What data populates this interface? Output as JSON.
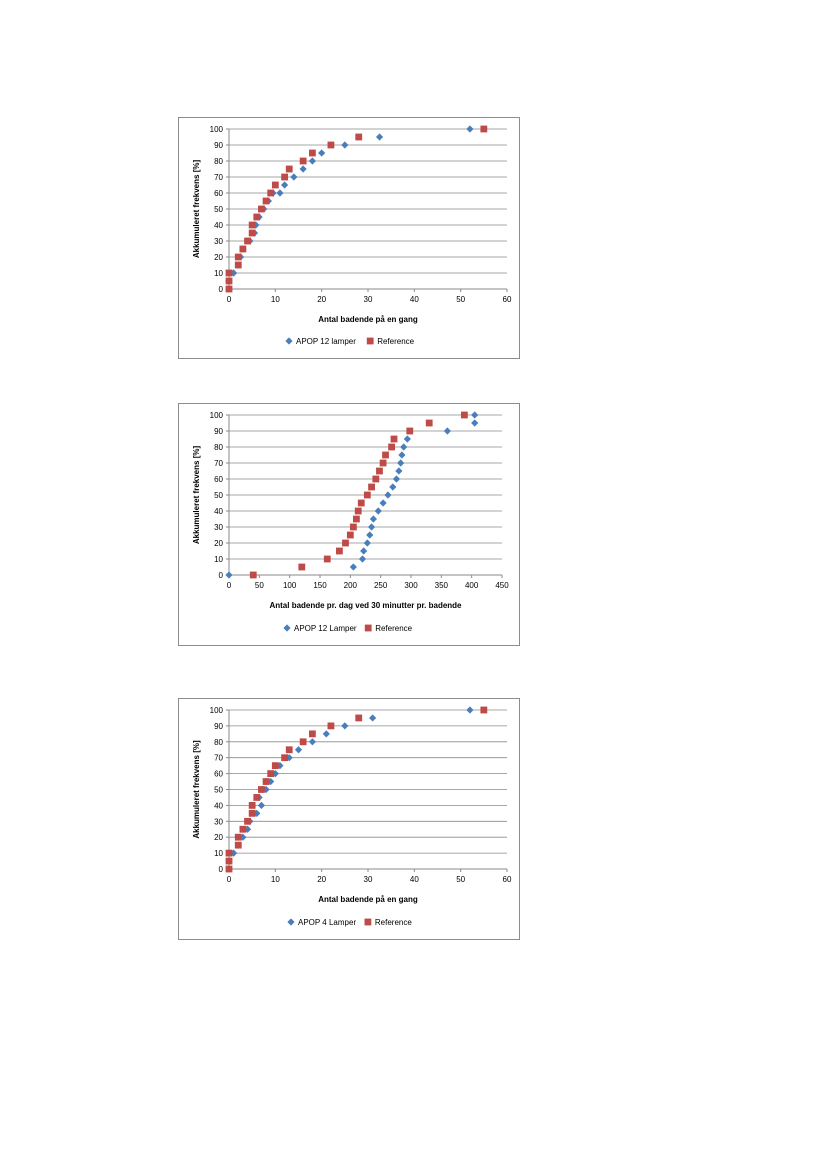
{
  "chart_data": [
    {
      "type": "scatter",
      "title": "",
      "xlabel": "Antal badende på en gang",
      "ylabel": "Akkumuleret frekvens [%]",
      "xlim": [
        0,
        60
      ],
      "ylim": [
        0,
        100
      ],
      "xticks": [
        0,
        10,
        20,
        30,
        40,
        50,
        60
      ],
      "yticks": [
        0,
        10,
        20,
        30,
        40,
        50,
        60,
        70,
        80,
        90,
        100
      ],
      "grid": "horizontal",
      "legend": "bottom",
      "series": [
        {
          "name": "APOP 12 lamper",
          "marker": "diamond",
          "color": "#4a7ebb",
          "points": [
            [
              0,
              0
            ],
            [
              0,
              5
            ],
            [
              1,
              10
            ],
            [
              2,
              15
            ],
            [
              2.5,
              20
            ],
            [
              3,
              25
            ],
            [
              4.5,
              30
            ],
            [
              5.5,
              35
            ],
            [
              5.8,
              40
            ],
            [
              6.5,
              45
            ],
            [
              7.5,
              50
            ],
            [
              8.5,
              55
            ],
            [
              9.5,
              60
            ],
            [
              12,
              65
            ],
            [
              11,
              60
            ],
            [
              14,
              70
            ],
            [
              16,
              75
            ],
            [
              18,
              80
            ],
            [
              20,
              85
            ],
            [
              25,
              90
            ],
            [
              32.5,
              95
            ],
            [
              52,
              100
            ]
          ]
        },
        {
          "name": "Reference",
          "marker": "square",
          "color": "#be4b48",
          "points": [
            [
              0,
              0
            ],
            [
              0,
              5
            ],
            [
              0,
              10
            ],
            [
              2,
              15
            ],
            [
              2,
              20
            ],
            [
              3,
              25
            ],
            [
              4,
              30
            ],
            [
              5,
              35
            ],
            [
              5,
              40
            ],
            [
              6,
              45
            ],
            [
              7,
              50
            ],
            [
              8,
              55
            ],
            [
              9,
              60
            ],
            [
              10,
              65
            ],
            [
              12,
              70
            ],
            [
              13,
              75
            ],
            [
              16,
              80
            ],
            [
              18,
              85
            ],
            [
              22,
              90
            ],
            [
              28,
              95
            ],
            [
              55,
              100
            ]
          ]
        }
      ]
    },
    {
      "type": "scatter",
      "title": "",
      "xlabel": "Antal badende pr. dag ved 30 minutter pr. badende",
      "ylabel": "Akkumuleret frekvens [%]",
      "xlim": [
        0,
        450
      ],
      "ylim": [
        0,
        100
      ],
      "xticks": [
        0,
        50,
        100,
        150,
        200,
        250,
        300,
        350,
        400,
        450
      ],
      "yticks": [
        0,
        10,
        20,
        30,
        40,
        50,
        60,
        70,
        80,
        90,
        100
      ],
      "grid": "horizontal",
      "legend": "bottom",
      "series": [
        {
          "name": "APOP 12 Lamper",
          "marker": "diamond",
          "color": "#4a7ebb",
          "points": [
            [
              0,
              0
            ],
            [
              205,
              5
            ],
            [
              220,
              10
            ],
            [
              222,
              15
            ],
            [
              228,
              20
            ],
            [
              232,
              25
            ],
            [
              235,
              30
            ],
            [
              238,
              35
            ],
            [
              246,
              40
            ],
            [
              254,
              45
            ],
            [
              262,
              50
            ],
            [
              270,
              55
            ],
            [
              276,
              60
            ],
            [
              280,
              65
            ],
            [
              283,
              70
            ],
            [
              285,
              75
            ],
            [
              288,
              80
            ],
            [
              294,
              85
            ],
            [
              360,
              90
            ],
            [
              405,
              95
            ],
            [
              405,
              100
            ]
          ]
        },
        {
          "name": "Reference",
          "marker": "square",
          "color": "#be4b48",
          "points": [
            [
              40,
              0
            ],
            [
              120,
              5
            ],
            [
              162,
              10
            ],
            [
              182,
              15
            ],
            [
              192,
              20
            ],
            [
              200,
              25
            ],
            [
              205,
              30
            ],
            [
              210,
              35
            ],
            [
              213,
              40
            ],
            [
              218,
              45
            ],
            [
              228,
              50
            ],
            [
              235,
              55
            ],
            [
              242,
              60
            ],
            [
              248,
              65
            ],
            [
              254,
              70
            ],
            [
              258,
              75
            ],
            [
              268,
              80
            ],
            [
              272,
              85
            ],
            [
              298,
              90
            ],
            [
              330,
              95
            ],
            [
              388,
              100
            ]
          ]
        }
      ]
    },
    {
      "type": "scatter",
      "title": "",
      "xlabel": "Antal badende på en gang",
      "ylabel": "Akkumuleret frekvens [%]",
      "xlim": [
        0,
        60
      ],
      "ylim": [
        0,
        100
      ],
      "xticks": [
        0,
        10,
        20,
        30,
        40,
        50,
        60
      ],
      "yticks": [
        0,
        10,
        20,
        30,
        40,
        50,
        60,
        70,
        80,
        90,
        100
      ],
      "grid": "horizontal",
      "legend": "bottom",
      "series": [
        {
          "name": "APOP 4 Lamper",
          "marker": "diamond",
          "color": "#4a7ebb",
          "points": [
            [
              0,
              0
            ],
            [
              0,
              5
            ],
            [
              1,
              10
            ],
            [
              2,
              15
            ],
            [
              3,
              20
            ],
            [
              4,
              25
            ],
            [
              4.5,
              30
            ],
            [
              6,
              35
            ],
            [
              7,
              40
            ],
            [
              6.5,
              45
            ],
            [
              8,
              50
            ],
            [
              9,
              55
            ],
            [
              10,
              60
            ],
            [
              11,
              65
            ],
            [
              13,
              70
            ],
            [
              15,
              75
            ],
            [
              18,
              80
            ],
            [
              21,
              85
            ],
            [
              25,
              90
            ],
            [
              31,
              95
            ],
            [
              52,
              100
            ]
          ]
        },
        {
          "name": "Reference",
          "marker": "square",
          "color": "#be4b48",
          "points": [
            [
              0,
              0
            ],
            [
              0,
              5
            ],
            [
              0,
              10
            ],
            [
              2,
              15
            ],
            [
              2,
              20
            ],
            [
              3,
              25
            ],
            [
              4,
              30
            ],
            [
              5,
              35
            ],
            [
              5,
              40
            ],
            [
              6,
              45
            ],
            [
              7,
              50
            ],
            [
              8,
              55
            ],
            [
              9,
              60
            ],
            [
              10,
              65
            ],
            [
              12,
              70
            ],
            [
              13,
              75
            ],
            [
              16,
              80
            ],
            [
              18,
              85
            ],
            [
              22,
              90
            ],
            [
              28,
              95
            ],
            [
              55,
              100
            ]
          ]
        }
      ]
    }
  ]
}
